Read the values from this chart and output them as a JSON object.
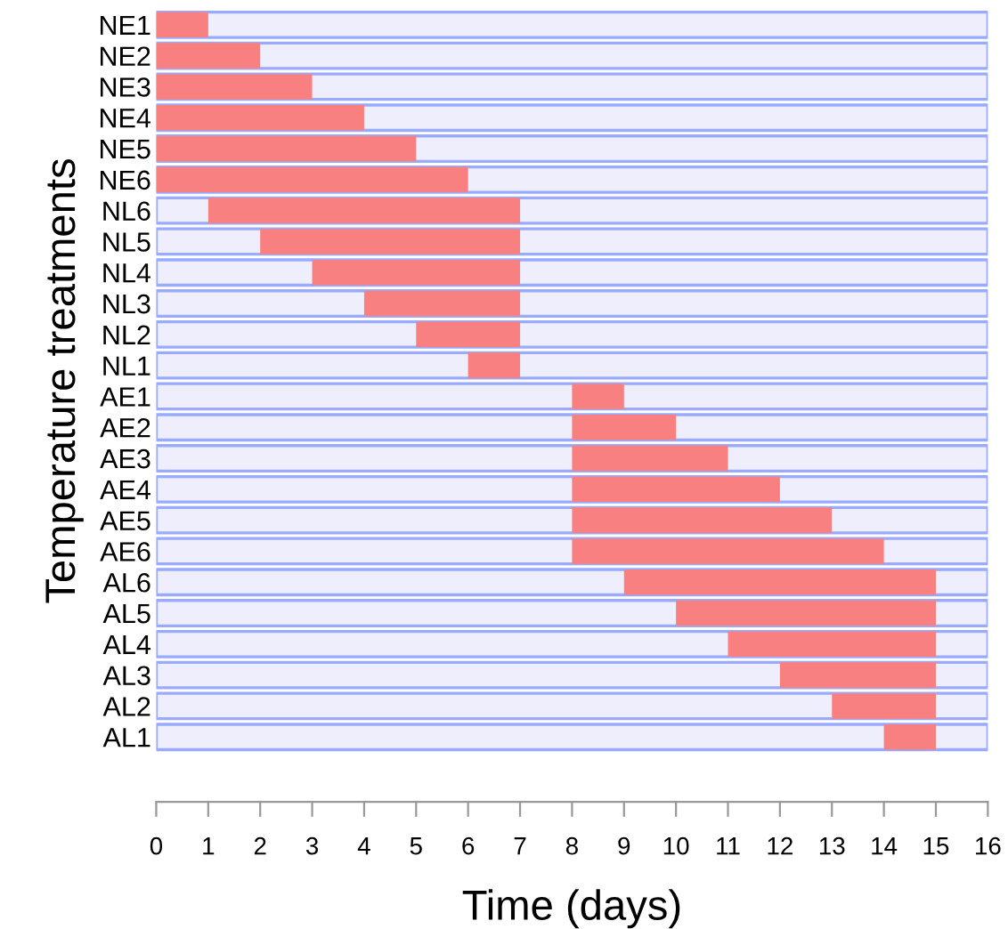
{
  "chart_data": {
    "type": "bar",
    "orientation": "horizontal",
    "xlabel": "Time (days)",
    "ylabel": "Temperature treatments",
    "categories": [
      "NE1",
      "NE2",
      "NE3",
      "NE4",
      "NE5",
      "NE6",
      "NL6",
      "NL5",
      "NL4",
      "NL3",
      "NL2",
      "NL1",
      "AE1",
      "AE2",
      "AE3",
      "AE4",
      "AE5",
      "AE6",
      "AL6",
      "AL5",
      "AL4",
      "AL3",
      "AL2",
      "AL1"
    ],
    "series": [
      {
        "color": "#eeeefc",
        "base": [
          0,
          0,
          0,
          0,
          0,
          0,
          0,
          0,
          0,
          0,
          0,
          0,
          0,
          0,
          0,
          0,
          0,
          0,
          0,
          0,
          0,
          0,
          0,
          0
        ],
        "values": [
          16,
          16,
          16,
          16,
          16,
          16,
          16,
          16,
          16,
          16,
          16,
          16,
          16,
          16,
          16,
          16,
          16,
          16,
          16,
          16,
          16,
          16,
          16,
          16
        ]
      },
      {
        "color": "#f88080",
        "base": [
          0,
          0,
          0,
          0,
          0,
          0,
          1,
          2,
          3,
          4,
          5,
          6,
          8,
          8,
          8,
          8,
          8,
          8,
          9,
          10,
          11,
          12,
          13,
          14
        ],
        "values": [
          1,
          2,
          3,
          4,
          5,
          6,
          6,
          5,
          4,
          3,
          2,
          1,
          1,
          2,
          3,
          4,
          5,
          6,
          6,
          5,
          4,
          3,
          2,
          1
        ]
      }
    ],
    "xlim": [
      0,
      16
    ],
    "xticks": [
      0,
      1,
      2,
      3,
      4,
      5,
      6,
      7,
      8,
      9,
      10,
      11,
      12,
      13,
      14,
      15,
      16
    ],
    "grid": false,
    "legend": false
  }
}
